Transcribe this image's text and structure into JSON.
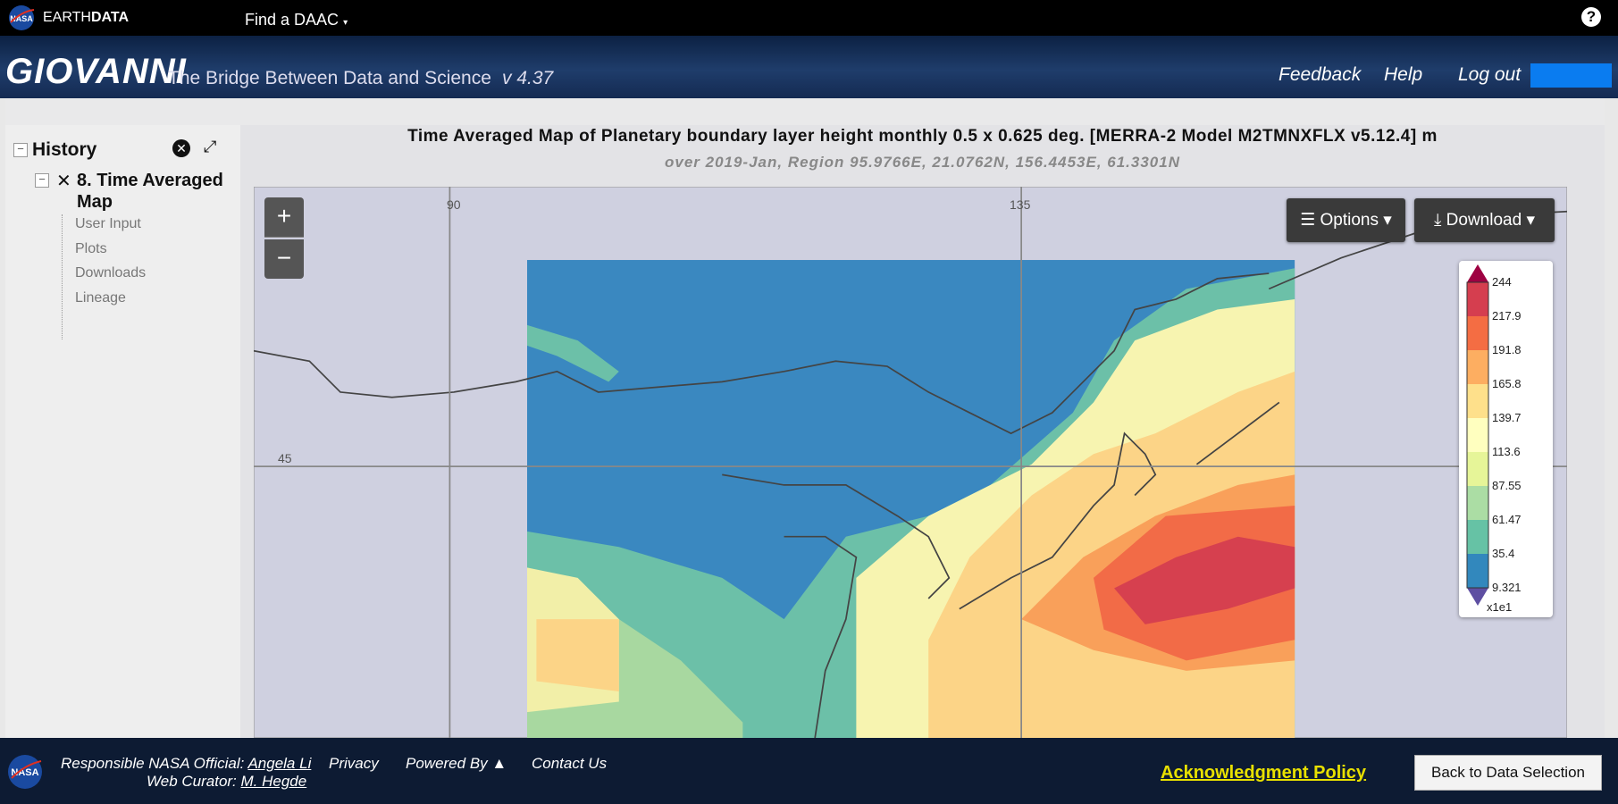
{
  "topbar": {
    "brand_a": "EARTH",
    "brand_b": "DATA",
    "menu": "Find a DAAC",
    "help": "?"
  },
  "header": {
    "title": "GIOVANNI",
    "tagline": "The Bridge Between Data and Science",
    "version": "v 4.37",
    "links": [
      "Feedback",
      "Help",
      "Log out"
    ]
  },
  "sidebar": {
    "title": "History",
    "item": "8. Time Averaged Map",
    "children": [
      "User Input",
      "Plots",
      "Downloads",
      "Lineage"
    ]
  },
  "plot": {
    "title": "Time Averaged Map of Planetary boundary layer height monthly 0.5 x 0.625 deg. [MERRA-2 Model M2TMNXFLX v5.12.4] m",
    "subtitle": "over 2019-Jan, Region 95.9766E, 21.0762N, 156.4453E, 61.3301N",
    "zoom_in": "+",
    "zoom_out": "−",
    "options": "Options",
    "download": "Download",
    "grid_labels": [
      "90",
      "135",
      "45"
    ],
    "legend": {
      "labels": [
        "244",
        "217.9",
        "191.8",
        "165.8",
        "139.7",
        "113.6",
        "87.55",
        "61.47",
        "35.4",
        "9.321"
      ],
      "scale": "x1e1"
    }
  },
  "footer": {
    "official_label": "Responsible NASA Official:",
    "official": "Angela Li",
    "curator_label": "Web Curator:",
    "curator": "M. Hegde",
    "links": [
      "Privacy",
      "Powered By ▲",
      "Contact Us"
    ],
    "policy": "Acknowledgment Policy",
    "back": "Back to Data Selection"
  }
}
